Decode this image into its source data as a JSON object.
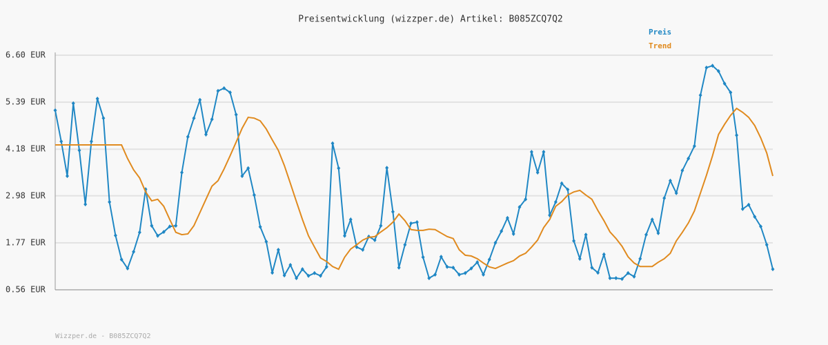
{
  "chart_data": {
    "type": "line",
    "title": "Preisentwicklung (wizzper.de) Artikel: B085ZCQ7Q2",
    "footer": "Wizzper.de - B085ZCQ7Q2",
    "ylim": [
      0.56,
      6.6
    ],
    "yticks": [
      {
        "value": 0.56,
        "label": "0.56 EUR"
      },
      {
        "value": 1.77,
        "label": "1.77 EUR"
      },
      {
        "value": 2.98,
        "label": "2.98 EUR"
      },
      {
        "value": 4.18,
        "label": "4.18 EUR"
      },
      {
        "value": 5.39,
        "label": "5.39 EUR"
      },
      {
        "value": 6.6,
        "label": "6.60 EUR"
      }
    ],
    "grid": true,
    "series": [
      {
        "name": "Preis",
        "color": "#1f87c4",
        "markers": true,
        "values": [
          5.18,
          4.38,
          3.49,
          5.36,
          4.15,
          2.76,
          4.38,
          5.48,
          4.98,
          2.82,
          1.96,
          1.34,
          1.11,
          1.54,
          2.04,
          3.15,
          2.21,
          1.95,
          2.05,
          2.19,
          2.21,
          3.58,
          4.5,
          4.98,
          5.45,
          4.56,
          4.95,
          5.68,
          5.75,
          5.64,
          5.07,
          3.49,
          3.69,
          3.0,
          2.18,
          1.8,
          1.0,
          1.59,
          0.93,
          1.2,
          0.86,
          1.09,
          0.92,
          0.99,
          0.92,
          1.15,
          4.33,
          3.69,
          1.95,
          2.37,
          1.66,
          1.59,
          1.93,
          1.84,
          2.21,
          3.7,
          2.57,
          1.13,
          1.72,
          2.27,
          2.3,
          1.4,
          0.86,
          0.95,
          1.41,
          1.15,
          1.13,
          0.95,
          0.99,
          1.11,
          1.27,
          0.95,
          1.34,
          1.77,
          2.07,
          2.41,
          2.0,
          2.69,
          2.89,
          4.11,
          3.58,
          4.11,
          2.48,
          2.82,
          3.3,
          3.14,
          1.82,
          1.36,
          1.98,
          1.13,
          1.0,
          1.47,
          0.86,
          0.86,
          0.84,
          0.99,
          0.9,
          1.36,
          1.98,
          2.37,
          2.02,
          2.92,
          3.37,
          3.05,
          3.63,
          3.94,
          4.26,
          5.57,
          6.28,
          6.33,
          6.19,
          5.87,
          5.64,
          4.54,
          2.64,
          2.75,
          2.44,
          2.19,
          1.72,
          1.09
        ]
      },
      {
        "name": "Trend",
        "color": "#e08a1e",
        "markers": false,
        "values": [
          4.29,
          4.29,
          4.29,
          4.29,
          4.29,
          4.29,
          4.29,
          4.29,
          4.29,
          4.29,
          4.29,
          4.29,
          3.94,
          3.65,
          3.44,
          3.08,
          2.85,
          2.89,
          2.71,
          2.37,
          2.04,
          1.98,
          2.0,
          2.21,
          2.55,
          2.89,
          3.23,
          3.37,
          3.67,
          4.01,
          4.36,
          4.72,
          5.0,
          4.98,
          4.91,
          4.7,
          4.42,
          4.15,
          3.76,
          3.3,
          2.83,
          2.37,
          1.95,
          1.66,
          1.38,
          1.29,
          1.16,
          1.09,
          1.4,
          1.61,
          1.72,
          1.84,
          1.91,
          1.93,
          2.05,
          2.16,
          2.3,
          2.51,
          2.34,
          2.11,
          2.09,
          2.09,
          2.12,
          2.11,
          2.02,
          1.93,
          1.88,
          1.59,
          1.45,
          1.43,
          1.36,
          1.25,
          1.15,
          1.11,
          1.18,
          1.25,
          1.31,
          1.43,
          1.5,
          1.66,
          1.84,
          2.16,
          2.37,
          2.71,
          2.83,
          3.0,
          3.08,
          3.12,
          3.0,
          2.89,
          2.6,
          2.34,
          2.05,
          1.88,
          1.68,
          1.41,
          1.25,
          1.16,
          1.16,
          1.16,
          1.27,
          1.36,
          1.5,
          1.82,
          2.04,
          2.28,
          2.59,
          3.05,
          3.51,
          4.01,
          4.56,
          4.82,
          5.05,
          5.23,
          5.13,
          5.0,
          4.79,
          4.47,
          4.08,
          3.49
        ]
      }
    ]
  }
}
